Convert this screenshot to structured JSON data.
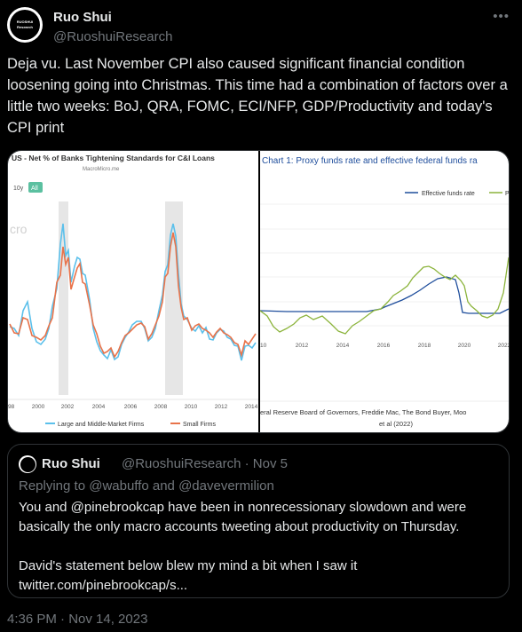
{
  "author": {
    "name": "Ruo Shui",
    "handle": "@RuoshuiResearch",
    "avatar_text": "RUOSHUI Research",
    "more_icon": "more-icon"
  },
  "tweet": {
    "text": "Deja vu. Last November CPI also caused significant financial condition loosening going into Christmas. This time had a combination of factors over a little two weeks: BoJ, QRA, FOMC, ECI/NFP, GDP/Productivity and today's CPI print"
  },
  "chart_left": {
    "title": "US - Net % of Banks Tightening Standards for C&I Loans",
    "source": "MacroMicro.me",
    "btn_10y": "10y",
    "btn_all": "All",
    "watermark": "cro",
    "x_ticks": [
      "98",
      "2000",
      "2002",
      "2004",
      "2006",
      "2008",
      "2010",
      "2012",
      "2014"
    ],
    "legend": [
      "Large and Middle-Market Firms",
      "Small Firms"
    ],
    "colors": {
      "large": "#5bc0eb",
      "small": "#e8734a",
      "recession": "#e6e6e6"
    }
  },
  "chart_right": {
    "title": "Chart 1: Proxy funds rate and effective federal funds ra",
    "legend": [
      "Effective funds rate",
      "Pr"
    ],
    "x_ticks": [
      "10",
      "2012",
      "2014",
      "2016",
      "2018",
      "2020",
      "2022"
    ],
    "source_line1": "eral Reserve Board of Governors, Freddie Mac, The Bond Buyer, Moo",
    "source_line2": "et al (2022)",
    "colors": {
      "effective": "#1f4e9c",
      "proxy": "#8cb43c"
    }
  },
  "quote": {
    "name": "Ruo Shui",
    "handle_date": "@RuoshuiResearch · Nov 5",
    "reply_to": "Replying to @wabuffo and @davevermilion",
    "text_p1": "You and @pinebrookcap have been in nonrecessionary slowdown and were basically the only macro accounts tweeting about productivity on Thursday.",
    "text_p2": "David's statement below blew my mind a bit when I saw it",
    "link": "twitter.com/pinebrookcap/s..."
  },
  "timestamp": "4:36 PM · Nov 14, 2023"
}
